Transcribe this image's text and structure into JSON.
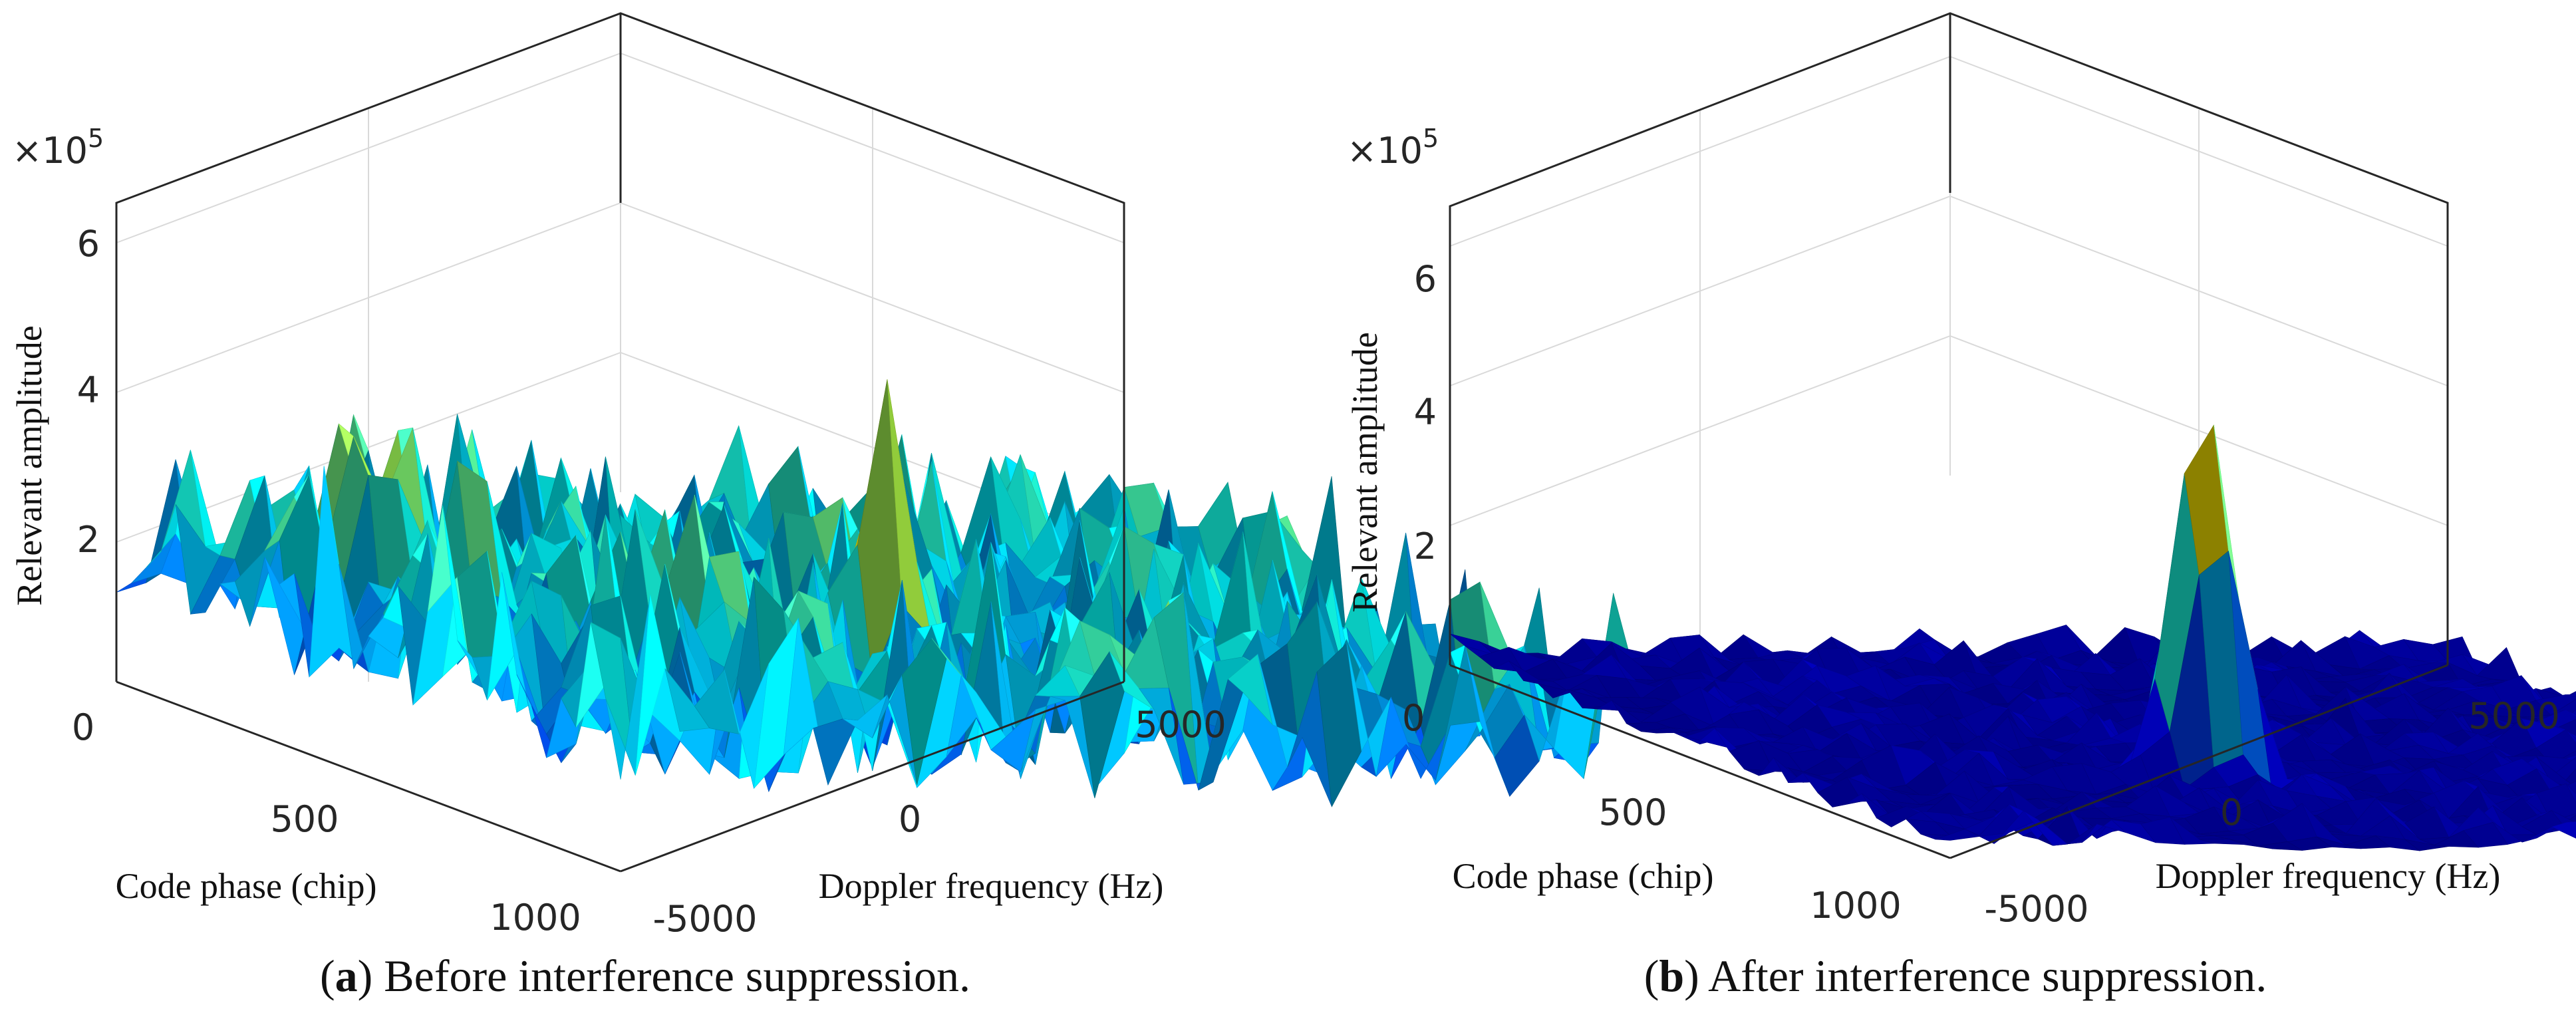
{
  "chart_data": [
    {
      "type": "surface",
      "panel_letter": "a",
      "caption": "Before interference suppression.",
      "scale_factor": "×10",
      "scale_exponent": "5",
      "zlabel": "Relevant amplitude",
      "xlabel": "Code phase (chip)",
      "ylabel": "Doppler frequency (Hz)",
      "xlim": [
        0,
        1000
      ],
      "ylim": [
        -5000,
        5000
      ],
      "zlim": [
        0,
        700000
      ],
      "x_ticks": [
        "0",
        "500",
        "1000"
      ],
      "y_ticks": [
        "-5000",
        "0",
        "5000"
      ],
      "z_ticks": [
        "2",
        "4",
        "6"
      ],
      "noise_floor": 250000,
      "noise_spread": 200000,
      "peaks": [
        {
          "x": 640,
          "y": -600,
          "z": 700000
        },
        {
          "x": 220,
          "y": -3800,
          "z": 560000
        },
        {
          "x": 380,
          "y": -3400,
          "z": 540000
        },
        {
          "x": 560,
          "y": -2400,
          "z": 440000
        },
        {
          "x": 420,
          "y": 200,
          "z": 420000
        }
      ],
      "colormap": "jet"
    },
    {
      "type": "surface",
      "panel_letter": "b",
      "caption": "After interference suppression.",
      "scale_factor": "×10",
      "scale_exponent": "5",
      "zlabel": "Relevant amplitude",
      "xlabel": "Code phase (chip)",
      "ylabel": "Doppler frequency (Hz)",
      "xlim": [
        0,
        1000
      ],
      "ylim": [
        -5000,
        5000
      ],
      "zlim": [
        0,
        700000
      ],
      "x_ticks": [
        "0",
        "500",
        "1000"
      ],
      "y_ticks": [
        "-5000",
        "0",
        "5000"
      ],
      "z_ticks": [
        "2",
        "4",
        "6"
      ],
      "noise_floor": 20000,
      "noise_spread": 50000,
      "peaks": [
        {
          "x": 650,
          "y": -700,
          "z": 680000
        }
      ],
      "colormap": "jet"
    }
  ]
}
